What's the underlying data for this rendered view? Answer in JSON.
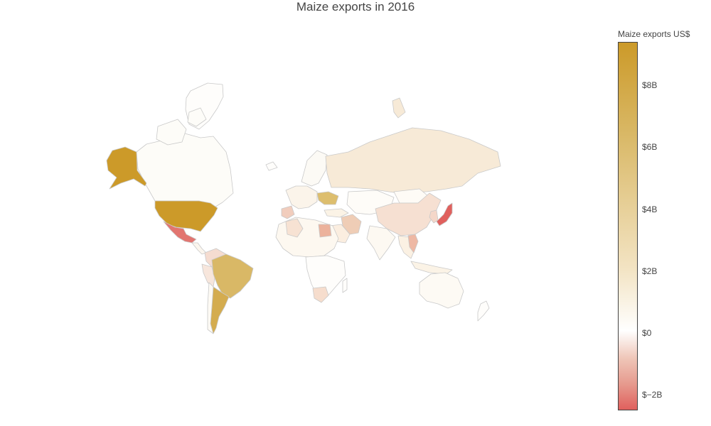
{
  "title": "Maize exports in 2016",
  "colorbar": {
    "title": "Maize exports US$",
    "ticks": [
      "$8B",
      "$6B",
      "$4B",
      "$2B",
      "$0",
      "$−2B"
    ]
  },
  "colors": {
    "high": "#cc9a29",
    "mid_high": "#d9b866",
    "zero": "#ffffff",
    "low": "#e0605d",
    "border": "#c9c9c9"
  }
}
